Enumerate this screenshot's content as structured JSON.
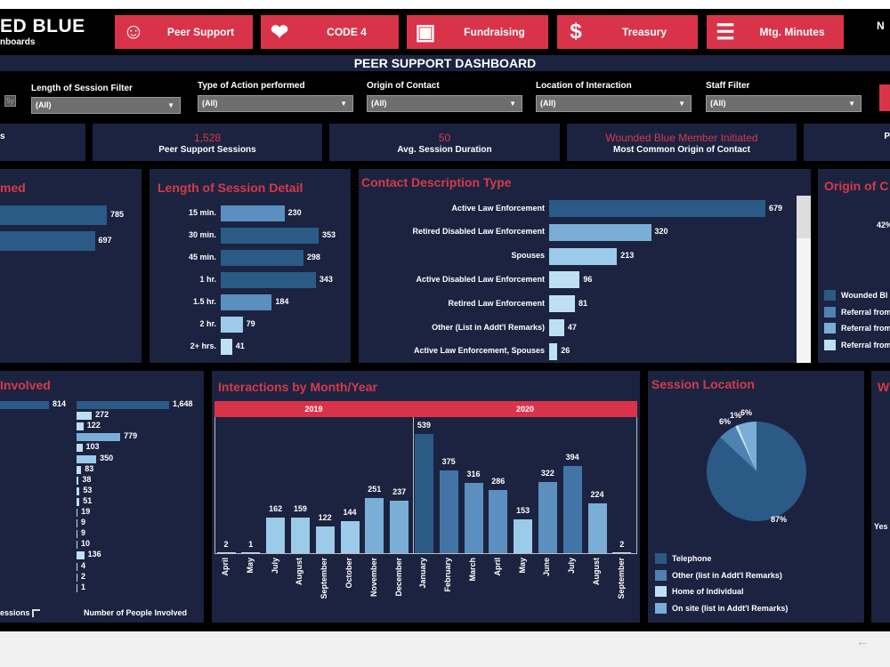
{
  "header": {
    "brand": "ED BLUE",
    "brand_sub": "nboards",
    "right_text": "N",
    "nav": [
      {
        "label": "Peer Support",
        "icon": "people-icon"
      },
      {
        "label": "CODE 4",
        "icon": "heart-plus-icon"
      },
      {
        "label": "Fundraising",
        "icon": "donation-box-icon"
      },
      {
        "label": "Treasury",
        "icon": "money-bag-icon"
      },
      {
        "label": "Mtg. Minutes",
        "icon": "clipboard-icon"
      }
    ]
  },
  "banner": "PEER SUPPORT DASHBOARD",
  "filters": {
    "small_box": "5y",
    "items": [
      {
        "label": "Length of Session Filter",
        "value": "(All)"
      },
      {
        "label": "Type of Action performed",
        "value": "(All)"
      },
      {
        "label": "Origin of Contact",
        "value": "(All)"
      },
      {
        "label": "Location of Interaction",
        "value": "(All)"
      },
      {
        "label": "Staff Filter",
        "value": "(All)"
      }
    ]
  },
  "kpis": [
    {
      "value": "",
      "label": "s"
    },
    {
      "value": "1,528",
      "label": "Peer Support Sessions"
    },
    {
      "value": "50",
      "label": "Avg. Session Duration"
    },
    {
      "value": "Wounded Blue Member Initiated",
      "label": "Most Common Origin of Contact"
    },
    {
      "value": "",
      "label": "P"
    }
  ],
  "colors": {
    "accent": "#d9334a",
    "panel": "#1b2340",
    "bar_dark": "#2b5a86",
    "bar_light": "#bfe0f3"
  },
  "chart_data": [
    {
      "type": "bar",
      "title": "med",
      "orientation": "horizontal",
      "values": [
        785,
        697
      ],
      "labels": [
        "785",
        "697"
      ]
    },
    {
      "type": "bar",
      "title": "Length of Session Detail",
      "orientation": "horizontal",
      "categories": [
        "15 min.",
        "30 min.",
        "45 min.",
        "1 hr.",
        "1.5 hr.",
        "2 hr.",
        "2+ hrs."
      ],
      "values": [
        230,
        353,
        298,
        343,
        184,
        79,
        41
      ]
    },
    {
      "type": "bar",
      "title": "Contact Description Type",
      "orientation": "horizontal",
      "categories": [
        "Active Law Enforcement",
        "Retired Disabled Law Enforcement",
        "Spouses",
        "Active Disabled Law Enforcement",
        "Retired Law Enforcement",
        "Other (List in Addt'l Remarks)",
        "Active Law Enforcement, Spouses"
      ],
      "values": [
        679,
        320,
        213,
        96,
        81,
        47,
        26
      ]
    },
    {
      "type": "pie",
      "title": "Origin of C",
      "labels": [
        "42%"
      ],
      "legend": [
        "Wounded Bl",
        "Referral from",
        "Referral from",
        "Referral from"
      ]
    },
    {
      "type": "bar",
      "title": "Involved",
      "orientation": "horizontal",
      "sessions": [
        814
      ],
      "people": [
        1648,
        272,
        122,
        779,
        103,
        350,
        83,
        38,
        53,
        51,
        19,
        9,
        9,
        10,
        136,
        4,
        2,
        1
      ],
      "xlabels": [
        "essions",
        "Number of People Involved"
      ]
    },
    {
      "type": "bar",
      "title": "Interactions by Month/Year",
      "groups": [
        {
          "year": "2019",
          "months": [
            "April",
            "May",
            "July",
            "August",
            "September",
            "October",
            "November",
            "December"
          ],
          "values": [
            2,
            1,
            162,
            159,
            122,
            144,
            251,
            237
          ]
        },
        {
          "year": "2020",
          "months": [
            "January",
            "February",
            "March",
            "April",
            "May",
            "June",
            "July",
            "August",
            "September"
          ],
          "values": [
            539,
            375,
            316,
            286,
            153,
            322,
            394,
            224,
            2
          ]
        }
      ]
    },
    {
      "type": "pie",
      "title": "Session Location",
      "categories": [
        "Telephone",
        "Other (list in Addt'l Remarks)",
        "Home of Individual",
        "On site (list in Addt'l Remarks)"
      ],
      "values": [
        87,
        6,
        1,
        6
      ],
      "labels": [
        "87%",
        "6%",
        "1%",
        "6%"
      ],
      "colors": [
        "#2b5a86",
        "#4f82b3",
        "#bfe0f3",
        "#7aaed6"
      ],
      "legend_position": "bottom"
    },
    {
      "type": "pie",
      "title": "W",
      "labels": [
        "Yes"
      ]
    }
  ],
  "footer": {
    "back_icon": "arrow-left-icon"
  }
}
